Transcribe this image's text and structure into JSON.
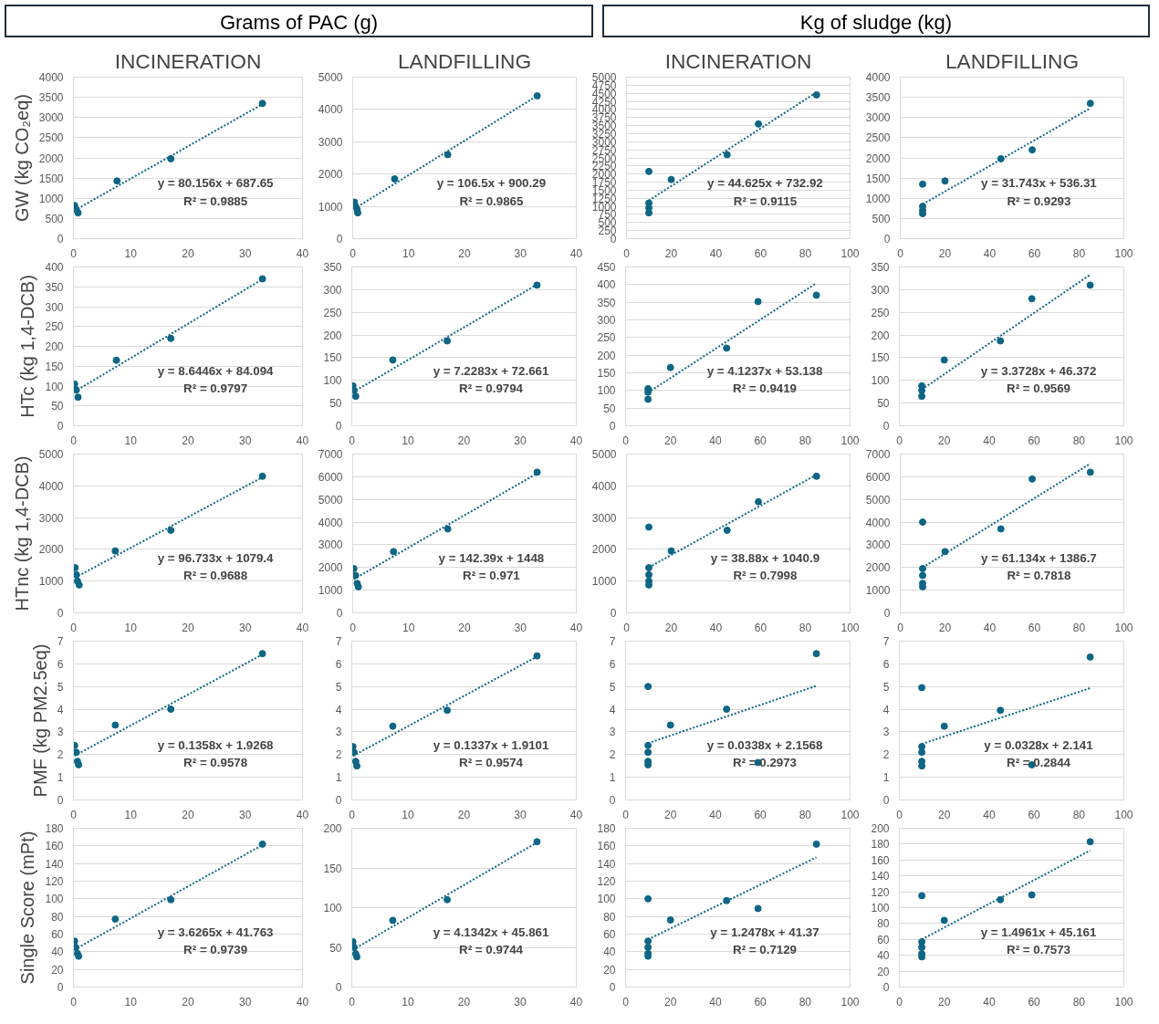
{
  "chart_data": [
    {
      "type": "other",
      "title": "Grams of PAC (g)"
    },
    {
      "type": "other",
      "title": "Kg of sludge (kg)"
    },
    {
      "type": "scatter",
      "title": "INCINERATION",
      "ylabel": "GW (kg CO₂eq)",
      "xlim": [
        0,
        40
      ],
      "xticks": [
        0,
        10,
        20,
        30,
        40
      ],
      "ylim": [
        0,
        4000
      ],
      "yticks": [
        0,
        500,
        1000,
        1500,
        2000,
        2500,
        3000,
        3500,
        4000
      ],
      "grid": "y",
      "marker": "circle",
      "series": [
        {
          "color": "#0e6584",
          "x": [
            0.2,
            0.5,
            0.8,
            7.6,
            17,
            33
          ],
          "values": [
            820,
            720,
            640,
            1430,
            1980,
            3350
          ]
        },
        {
          "type": "line",
          "line_style": "dotted",
          "marker": "none",
          "color": "#0e6584",
          "x": [
            0.2,
            33
          ],
          "values": [
            700,
            3330
          ]
        }
      ],
      "annotations": [
        "y = 80.156x + 687.65",
        "R² = 0.9885"
      ]
    },
    {
      "type": "scatter",
      "title": "LANDFILLING",
      "xlim": [
        0,
        40
      ],
      "xticks": [
        0,
        10,
        20,
        30,
        40
      ],
      "ylim": [
        0,
        5000
      ],
      "yticks": [
        0,
        1000,
        2000,
        3000,
        4000,
        5000
      ],
      "grid": "y",
      "marker": "circle",
      "series": [
        {
          "color": "#0e6584",
          "x": [
            0.3,
            0.5,
            0.8,
            0.9,
            7.5,
            17,
            33
          ],
          "values": [
            1130,
            1000,
            900,
            800,
            1850,
            2600,
            4420
          ]
        },
        {
          "type": "line",
          "line_style": "dotted",
          "marker": "none",
          "color": "#0e6584",
          "x": [
            0.3,
            33
          ],
          "values": [
            930,
            4420
          ]
        }
      ],
      "annotations": [
        "y = 106.5x + 900.29",
        "R² = 0.9865"
      ]
    },
    {
      "type": "scatter",
      "title": "INCINERATION",
      "xlim": [
        0,
        100
      ],
      "xticks": [
        0,
        20,
        40,
        60,
        80,
        100
      ],
      "ylim": [
        0,
        5000
      ],
      "yticks": [
        0,
        250,
        500,
        750,
        1000,
        1250,
        1500,
        1750,
        2000,
        2250,
        2500,
        2750,
        3000,
        3250,
        3500,
        3750,
        4000,
        4250,
        4500,
        4750,
        5000
      ],
      "grid": "y",
      "marker": "circle",
      "series": [
        {
          "color": "#0e6584",
          "x": [
            10,
            10,
            10,
            10,
            20,
            45,
            59,
            85
          ],
          "values": [
            2080,
            1100,
            950,
            800,
            1830,
            2600,
            3550,
            4450
          ]
        },
        {
          "type": "line",
          "line_style": "dotted",
          "marker": "none",
          "color": "#0e6584",
          "x": [
            10,
            85
          ],
          "values": [
            1180,
            4530
          ]
        }
      ],
      "annotations": [
        "y = 44.625x + 732.92",
        "R² = 0.9115"
      ]
    },
    {
      "type": "scatter",
      "title": "LANDFILLING",
      "xlim": [
        0,
        100
      ],
      "xticks": [
        0,
        20,
        40,
        60,
        80,
        100
      ],
      "ylim": [
        0,
        4000
      ],
      "yticks": [
        0,
        500,
        1000,
        1500,
        2000,
        2500,
        3000,
        3500,
        4000
      ],
      "grid": "y",
      "marker": "circle",
      "series": [
        {
          "color": "#0e6584",
          "x": [
            10,
            10,
            10,
            10,
            20,
            45,
            59,
            85
          ],
          "values": [
            1350,
            800,
            700,
            620,
            1430,
            1980,
            2200,
            3350
          ]
        },
        {
          "type": "line",
          "line_style": "dotted",
          "marker": "none",
          "color": "#0e6584",
          "x": [
            10,
            85
          ],
          "values": [
            850,
            3230
          ]
        }
      ],
      "annotations": [
        "y = 31.743x + 536.31",
        "R² = 0.9293"
      ]
    },
    {
      "type": "scatter",
      "ylabel": "HTc (kg 1,4-DCB)",
      "xlim": [
        0,
        40
      ],
      "xticks": [
        0,
        10,
        20,
        30,
        40
      ],
      "ylim": [
        0,
        400
      ],
      "yticks": [
        0,
        50,
        100,
        150,
        200,
        250,
        300,
        350,
        400
      ],
      "grid": "y",
      "marker": "circle",
      "series": [
        {
          "color": "#0e6584",
          "x": [
            0.2,
            0.5,
            0.8,
            7.5,
            17,
            33
          ],
          "values": [
            105,
            90,
            72,
            165,
            220,
            370
          ]
        },
        {
          "type": "line",
          "line_style": "dotted",
          "marker": "none",
          "color": "#0e6584",
          "x": [
            0.2,
            33
          ],
          "values": [
            86,
            369
          ]
        }
      ],
      "annotations": [
        "y = 8.6446x + 84.094",
        "R² = 0.9797"
      ]
    },
    {
      "type": "scatter",
      "xlim": [
        0,
        40
      ],
      "xticks": [
        0,
        10,
        20,
        30,
        40
      ],
      "ylim": [
        0,
        350
      ],
      "yticks": [
        0,
        50,
        100,
        150,
        200,
        250,
        300,
        350
      ],
      "grid": "y",
      "marker": "circle",
      "series": [
        {
          "color": "#0e6584",
          "x": [
            0.2,
            0.4,
            0.7,
            7.3,
            17,
            33
          ],
          "values": [
            88,
            78,
            65,
            145,
            187,
            310
          ]
        },
        {
          "type": "line",
          "line_style": "dotted",
          "marker": "none",
          "color": "#0e6584",
          "x": [
            0.2,
            33
          ],
          "values": [
            74,
            311
          ]
        }
      ],
      "annotations": [
        "y = 7.2283x + 72.661",
        "R² = 0.9794"
      ]
    },
    {
      "type": "scatter",
      "xlim": [
        0,
        100
      ],
      "xticks": [
        0,
        20,
        40,
        60,
        80,
        100
      ],
      "ylim": [
        0,
        450
      ],
      "yticks": [
        0,
        50,
        100,
        150,
        200,
        250,
        300,
        350,
        400,
        450
      ],
      "grid": "y",
      "marker": "circle",
      "series": [
        {
          "color": "#0e6584",
          "x": [
            10,
            10,
            10,
            20,
            45,
            59,
            85
          ],
          "values": [
            105,
            95,
            75,
            165,
            220,
            352,
            370
          ]
        },
        {
          "type": "line",
          "line_style": "dotted",
          "marker": "none",
          "color": "#0e6584",
          "x": [
            10,
            85
          ],
          "values": [
            94,
            404
          ]
        }
      ],
      "annotations": [
        "y = 4.1237x + 53.138",
        "R² = 0.9419"
      ]
    },
    {
      "type": "scatter",
      "xlim": [
        0,
        100
      ],
      "xticks": [
        0,
        20,
        40,
        60,
        80,
        100
      ],
      "ylim": [
        0,
        350
      ],
      "yticks": [
        0,
        50,
        100,
        150,
        200,
        250,
        300,
        350
      ],
      "grid": "y",
      "marker": "circle",
      "series": [
        {
          "color": "#0e6584",
          "x": [
            10,
            10,
            10,
            20,
            45,
            59,
            85
          ],
          "values": [
            88,
            78,
            65,
            145,
            187,
            280,
            310
          ]
        },
        {
          "type": "line",
          "line_style": "dotted",
          "marker": "none",
          "color": "#0e6584",
          "x": [
            10,
            85
          ],
          "values": [
            80,
            333
          ]
        }
      ],
      "annotations": [
        "y = 3.3728x + 46.372",
        "R² = 0.9569"
      ]
    },
    {
      "type": "scatter",
      "ylabel": "HTnc (kg 1,4-DCB)",
      "xlim": [
        0,
        40
      ],
      "xticks": [
        0,
        10,
        20,
        30,
        40
      ],
      "ylim": [
        0,
        5000
      ],
      "yticks": [
        0,
        1000,
        2000,
        3000,
        4000,
        5000
      ],
      "grid": "y",
      "marker": "circle",
      "series": [
        {
          "color": "#0e6584",
          "x": [
            0.3,
            0.5,
            0.7,
            1,
            7.3,
            17,
            33
          ],
          "values": [
            1420,
            1200,
            1000,
            880,
            1950,
            2600,
            4300
          ]
        },
        {
          "type": "line",
          "line_style": "dotted",
          "marker": "none",
          "color": "#0e6584",
          "x": [
            0.3,
            33
          ],
          "values": [
            1110,
            4270
          ]
        }
      ],
      "annotations": [
        "y = 96.733x + 1079.4",
        "R² = 0.9688"
      ]
    },
    {
      "type": "scatter",
      "xlim": [
        0,
        40
      ],
      "xticks": [
        0,
        10,
        20,
        30,
        40
      ],
      "ylim": [
        0,
        7000
      ],
      "yticks": [
        0,
        1000,
        2000,
        3000,
        4000,
        5000,
        6000,
        7000
      ],
      "grid": "y",
      "marker": "circle",
      "series": [
        {
          "color": "#0e6584",
          "x": [
            0.2,
            0.5,
            0.8,
            1,
            7.3,
            17,
            33
          ],
          "values": [
            1950,
            1650,
            1300,
            1150,
            2700,
            3700,
            6200
          ]
        },
        {
          "type": "line",
          "line_style": "dotted",
          "marker": "none",
          "color": "#0e6584",
          "x": [
            0.2,
            33
          ],
          "values": [
            1480,
            6150
          ]
        }
      ],
      "annotations": [
        "y = 142.39x + 1448",
        "R² = 0.971"
      ]
    },
    {
      "type": "scatter",
      "xlim": [
        0,
        100
      ],
      "xticks": [
        0,
        20,
        40,
        60,
        80,
        100
      ],
      "ylim": [
        0,
        5000
      ],
      "yticks": [
        0,
        1000,
        2000,
        3000,
        4000,
        5000
      ],
      "grid": "y",
      "marker": "circle",
      "series": [
        {
          "color": "#0e6584",
          "x": [
            10,
            10,
            10,
            10,
            10,
            20,
            45,
            59,
            85
          ],
          "values": [
            2700,
            1420,
            1200,
            1000,
            880,
            1950,
            2600,
            3500,
            4300
          ]
        },
        {
          "type": "line",
          "line_style": "dotted",
          "marker": "none",
          "color": "#0e6584",
          "x": [
            10,
            85
          ],
          "values": [
            1430,
            4350
          ]
        }
      ],
      "annotations": [
        "y = 38.88x + 1040.9",
        "R² = 0.7998"
      ]
    },
    {
      "type": "scatter",
      "xlim": [
        0,
        100
      ],
      "xticks": [
        0,
        20,
        40,
        60,
        80,
        100
      ],
      "ylim": [
        0,
        7000
      ],
      "yticks": [
        0,
        1000,
        2000,
        3000,
        4000,
        5000,
        6000,
        7000
      ],
      "grid": "y",
      "marker": "circle",
      "series": [
        {
          "color": "#0e6584",
          "x": [
            10,
            10,
            10,
            10,
            10,
            20,
            45,
            59,
            85
          ],
          "values": [
            4000,
            1950,
            1650,
            1300,
            1150,
            2700,
            3700,
            5900,
            6200
          ]
        },
        {
          "type": "line",
          "line_style": "dotted",
          "marker": "none",
          "color": "#0e6584",
          "x": [
            10,
            85
          ],
          "values": [
            2000,
            6580
          ]
        }
      ],
      "annotations": [
        "y = 61.134x + 1386.7",
        "R² = 0.7818"
      ]
    },
    {
      "type": "scatter",
      "ylabel": "PMF (kg PM2.5eq)",
      "xlim": [
        0,
        40
      ],
      "xticks": [
        0,
        10,
        20,
        30,
        40
      ],
      "ylim": [
        0,
        7
      ],
      "yticks": [
        0,
        1,
        2,
        3,
        4,
        5,
        6,
        7
      ],
      "grid": "y",
      "marker": "circle",
      "series": [
        {
          "color": "#0e6584",
          "x": [
            0.2,
            0.5,
            0.7,
            0.9,
            7.3,
            17,
            33
          ],
          "values": [
            2.4,
            2.1,
            1.7,
            1.55,
            3.3,
            4.0,
            6.45
          ]
        },
        {
          "type": "line",
          "line_style": "dotted",
          "marker": "none",
          "color": "#0e6584",
          "x": [
            0.2,
            33
          ],
          "values": [
            1.95,
            6.41
          ]
        }
      ],
      "annotations": [
        "y = 0.1358x + 1.9268",
        "R² = 0.9578"
      ]
    },
    {
      "type": "scatter",
      "xlim": [
        0,
        40
      ],
      "xticks": [
        0,
        10,
        20,
        30,
        40
      ],
      "ylim": [
        0,
        7
      ],
      "yticks": [
        0,
        1,
        2,
        3,
        4,
        5,
        6,
        7
      ],
      "grid": "y",
      "marker": "circle",
      "series": [
        {
          "color": "#0e6584",
          "x": [
            0.2,
            0.4,
            0.7,
            0.9,
            7.3,
            17,
            33
          ],
          "values": [
            2.35,
            2.1,
            1.7,
            1.5,
            3.25,
            3.95,
            6.35
          ]
        },
        {
          "type": "line",
          "line_style": "dotted",
          "marker": "none",
          "color": "#0e6584",
          "x": [
            0.2,
            33
          ],
          "values": [
            1.94,
            6.32
          ]
        }
      ],
      "annotations": [
        "y = 0.1337x + 1.9101",
        "R² = 0.9574"
      ]
    },
    {
      "type": "scatter",
      "xlim": [
        0,
        100
      ],
      "xticks": [
        0,
        20,
        40,
        60,
        80,
        100
      ],
      "ylim": [
        0,
        7
      ],
      "yticks": [
        0,
        1,
        2,
        3,
        4,
        5,
        6,
        7
      ],
      "grid": "y",
      "marker": "circle",
      "series": [
        {
          "color": "#0e6584",
          "x": [
            10,
            10,
            10,
            10,
            10,
            20,
            45,
            59,
            85
          ],
          "values": [
            5.0,
            2.4,
            2.1,
            1.7,
            1.55,
            3.3,
            4.0,
            1.65,
            6.45
          ]
        },
        {
          "type": "line",
          "line_style": "dotted",
          "marker": "none",
          "color": "#0e6584",
          "x": [
            10,
            85
          ],
          "values": [
            2.5,
            5.03
          ]
        }
      ],
      "annotations": [
        "y = 0.0338x + 2.1568",
        "R² = 0.2973"
      ]
    },
    {
      "type": "scatter",
      "xlim": [
        0,
        100
      ],
      "xticks": [
        0,
        20,
        40,
        60,
        80,
        100
      ],
      "ylim": [
        0,
        7
      ],
      "yticks": [
        0,
        1,
        2,
        3,
        4,
        5,
        6,
        7
      ],
      "grid": "y",
      "marker": "circle",
      "series": [
        {
          "color": "#0e6584",
          "x": [
            10,
            10,
            10,
            10,
            10,
            20,
            45,
            59,
            85
          ],
          "values": [
            4.95,
            2.35,
            2.1,
            1.7,
            1.5,
            3.25,
            3.95,
            1.55,
            6.3
          ]
        },
        {
          "type": "line",
          "line_style": "dotted",
          "marker": "none",
          "color": "#0e6584",
          "x": [
            10,
            85
          ],
          "values": [
            2.47,
            4.93
          ]
        }
      ],
      "annotations": [
        "y = 0.0328x + 2.141",
        "R² = 0.2844"
      ]
    },
    {
      "type": "scatter",
      "ylabel": "Single Score (mPt)",
      "xlim": [
        0,
        40
      ],
      "xticks": [
        0,
        10,
        20,
        30,
        40
      ],
      "ylim": [
        0,
        180
      ],
      "yticks": [
        0,
        20,
        40,
        60,
        80,
        100,
        120,
        140,
        160,
        180
      ],
      "grid": "y",
      "marker": "circle",
      "series": [
        {
          "color": "#0e6584",
          "x": [
            0.2,
            0.4,
            0.7,
            0.9,
            7.3,
            17,
            33
          ],
          "values": [
            52,
            45,
            38,
            35,
            77,
            99,
            162
          ]
        },
        {
          "type": "line",
          "line_style": "dotted",
          "marker": "none",
          "color": "#0e6584",
          "x": [
            0.2,
            33
          ],
          "values": [
            42.5,
            161
          ]
        }
      ],
      "annotations": [
        "y = 3.6265x + 41.763",
        "R² = 0.9739"
      ]
    },
    {
      "type": "scatter",
      "xlim": [
        0,
        40
      ],
      "xticks": [
        0,
        10,
        20,
        30,
        40
      ],
      "ylim": [
        0,
        200
      ],
      "yticks": [
        0,
        50,
        100,
        150,
        200
      ],
      "grid": "y",
      "marker": "circle",
      "series": [
        {
          "color": "#0e6584",
          "x": [
            0.2,
            0.4,
            0.7,
            0.9,
            7.3,
            17,
            33
          ],
          "values": [
            57,
            50,
            42,
            38,
            84,
            110,
            183
          ]
        },
        {
          "type": "line",
          "line_style": "dotted",
          "marker": "none",
          "color": "#0e6584",
          "x": [
            0.2,
            33
          ],
          "values": [
            47,
            182
          ]
        }
      ],
      "annotations": [
        "y = 4.1342x + 45.861",
        "R² = 0.9744"
      ]
    },
    {
      "type": "scatter",
      "xlim": [
        0,
        100
      ],
      "xticks": [
        0,
        20,
        40,
        60,
        80,
        100
      ],
      "ylim": [
        0,
        180
      ],
      "yticks": [
        0,
        20,
        40,
        60,
        80,
        100,
        120,
        140,
        160,
        180
      ],
      "grid": "y",
      "marker": "circle",
      "series": [
        {
          "color": "#0e6584",
          "x": [
            10,
            10,
            10,
            10,
            10,
            20,
            45,
            59,
            85
          ],
          "values": [
            100,
            52,
            45,
            38,
            35,
            76,
            98,
            89,
            162
          ]
        },
        {
          "type": "line",
          "line_style": "dotted",
          "marker": "none",
          "color": "#0e6584",
          "x": [
            10,
            85
          ],
          "values": [
            54,
            147
          ]
        }
      ],
      "annotations": [
        "y = 1.2478x + 41.37",
        "R² = 0.7129"
      ]
    },
    {
      "type": "scatter",
      "xlim": [
        0,
        100
      ],
      "xticks": [
        0,
        20,
        40,
        60,
        80,
        100
      ],
      "ylim": [
        0,
        200
      ],
      "yticks": [
        0,
        20,
        40,
        60,
        80,
        100,
        120,
        140,
        160,
        180,
        200
      ],
      "grid": "y",
      "marker": "circle",
      "series": [
        {
          "color": "#0e6584",
          "x": [
            10,
            10,
            10,
            10,
            10,
            20,
            45,
            59,
            85
          ],
          "values": [
            115,
            57,
            50,
            42,
            38,
            84,
            110,
            116,
            183
          ]
        },
        {
          "type": "line",
          "line_style": "dotted",
          "marker": "none",
          "color": "#0e6584",
          "x": [
            10,
            85
          ],
          "values": [
            60,
            172
          ]
        }
      ],
      "annotations": [
        "y = 1.4961x + 45.161",
        "R² = 0.7573"
      ]
    }
  ]
}
